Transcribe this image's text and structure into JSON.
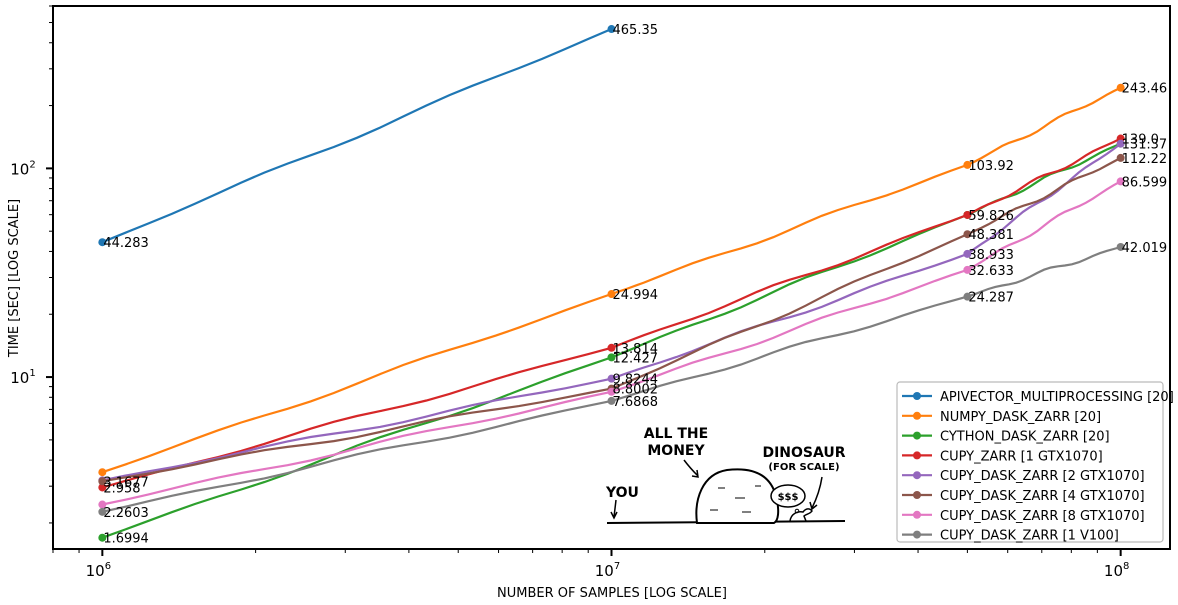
{
  "chart_data": {
    "type": "line",
    "xlabel": "NUMBER OF SAMPLES [LOG SCALE]",
    "ylabel": "TIME [SEC] [LOG SCALE]",
    "x_scale": "log",
    "y_scale": "log",
    "xlim": [
      800000,
      125000000
    ],
    "ylim": [
      1.5,
      600
    ],
    "x_ticks": [
      1000000,
      10000000,
      100000000
    ],
    "x_tick_labels": [
      {
        "base": "10",
        "exp": "6"
      },
      {
        "base": "10",
        "exp": "7"
      },
      {
        "base": "10",
        "exp": "8"
      }
    ],
    "y_ticks": [
      10,
      100
    ],
    "y_tick_labels": [
      {
        "base": "10",
        "exp": "1"
      },
      {
        "base": "10",
        "exp": "2"
      }
    ],
    "grid": false,
    "legend_position": "bottom-right",
    "series": [
      {
        "name": "APIVECTOR_MULTIPROCESSING [20]",
        "color": "#1f77b4",
        "x": [
          1000000,
          10000000
        ],
        "y": [
          44.283,
          465.35
        ],
        "labels": [
          "44.283",
          "465.35"
        ]
      },
      {
        "name": "NUMPY_DASK_ZARR [20]",
        "color": "#ff7f0e",
        "x": [
          1000000,
          10000000,
          50000000,
          100000000
        ],
        "y": [
          3.5,
          24.994,
          103.92,
          243.46
        ],
        "labels": [
          "",
          "24.994",
          "103.92",
          "243.46"
        ]
      },
      {
        "name": "CYTHON_DASK_ZARR [20]",
        "color": "#2ca02c",
        "x": [
          1000000,
          10000000,
          50000000,
          100000000
        ],
        "y": [
          1.6994,
          12.427,
          59.826,
          131.37
        ],
        "labels": [
          "1.6994",
          "12.427",
          "",
          ""
        ]
      },
      {
        "name": "CUPY_ZARR [1 GTX1070]",
        "color": "#d62728",
        "x": [
          1000000,
          10000000,
          50000000,
          100000000
        ],
        "y": [
          2.958,
          13.814,
          59.826,
          139.0
        ],
        "labels": [
          "2.958",
          "13.814",
          "59.826",
          "139.0"
        ]
      },
      {
        "name": "CUPY_DASK_ZARR [2 GTX1070]",
        "color": "#9467bd",
        "x": [
          1000000,
          10000000,
          50000000,
          100000000
        ],
        "y": [
          3.2,
          9.8244,
          38.933,
          131.37
        ],
        "labels": [
          "",
          "9.8244",
          "38.933",
          "131.37"
        ]
      },
      {
        "name": "CUPY_DASK_ZARR [4 GTX1070]",
        "color": "#8c564b",
        "x": [
          1000000,
          10000000,
          50000000,
          100000000
        ],
        "y": [
          3.1677,
          8.8002,
          48.381,
          112.22
        ],
        "labels": [
          "3.1677",
          "8.8002",
          "48.381",
          "112.22"
        ]
      },
      {
        "name": "CUPY_DASK_ZARR [8 GTX1070]",
        "color": "#e377c2",
        "x": [
          1000000,
          10000000,
          50000000,
          100000000
        ],
        "y": [
          2.45,
          8.5,
          32.633,
          86.599
        ],
        "labels": [
          "",
          "",
          "32.633",
          "86.599"
        ]
      },
      {
        "name": "CUPY_DASK_ZARR [1 V100]",
        "color": "#7f7f7f",
        "x": [
          1000000,
          10000000,
          50000000,
          100000000
        ],
        "y": [
          2.2603,
          7.6868,
          24.287,
          42.019
        ],
        "labels": [
          "2.2603",
          "7.6868",
          "24.287",
          "42.019"
        ]
      }
    ],
    "annotation": {
      "you": "YOU",
      "money_line1": "ALL THE",
      "money_line2": "MONEY",
      "dino_line1": "DINOSAUR",
      "dino_line2": "(FOR SCALE)",
      "dollars": "$$$"
    }
  }
}
